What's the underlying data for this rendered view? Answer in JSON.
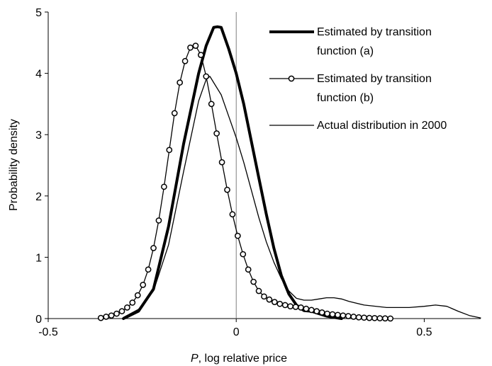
{
  "chart_data": {
    "type": "line",
    "xlabel_italic": "P",
    "xlabel_rest": ", log relative price",
    "ylabel": "Probability density",
    "xlim": [
      -0.5,
      0.65
    ],
    "ylim": [
      0,
      5
    ],
    "x_ticks": [
      {
        "value": -0.5,
        "label": "-0.5"
      },
      {
        "value": 0,
        "label": "0"
      },
      {
        "value": 0.5,
        "label": "0.5"
      }
    ],
    "y_ticks": [
      {
        "value": 0,
        "label": "0"
      },
      {
        "value": 1,
        "label": "1"
      },
      {
        "value": 2,
        "label": "2"
      },
      {
        "value": 3,
        "label": "3"
      },
      {
        "value": 4,
        "label": "4"
      },
      {
        "value": 5,
        "label": "5"
      }
    ],
    "vertical_reference_line_x": 0,
    "grid": false,
    "legend_position": "top-right",
    "legend": [
      {
        "line1": "Estimated by transition",
        "line2": "function (a)",
        "series_index": 0
      },
      {
        "line1": "Estimated by transition",
        "line2": "function (b)",
        "series_index": 1
      },
      {
        "line1": "Actual distribution in 2000",
        "line2": "",
        "series_index": 2
      }
    ],
    "series": [
      {
        "style": "thick",
        "color": "#000000",
        "x": [
          -0.3,
          -0.26,
          -0.22,
          -0.18,
          -0.14,
          -0.1,
          -0.08,
          -0.06,
          -0.05,
          -0.04,
          -0.02,
          0.0,
          0.02,
          0.04,
          0.06,
          0.08,
          0.1,
          0.12,
          0.14,
          0.16,
          0.18,
          0.2,
          0.22,
          0.24,
          0.26,
          0.28
        ],
        "y": [
          0.0,
          0.12,
          0.48,
          1.5,
          2.85,
          4.0,
          4.45,
          4.75,
          4.76,
          4.75,
          4.4,
          4.0,
          3.5,
          2.9,
          2.3,
          1.7,
          1.15,
          0.7,
          0.4,
          0.22,
          0.13,
          0.12,
          0.08,
          0.04,
          0.02,
          0.0
        ]
      },
      {
        "style": "markers",
        "color": "#000000",
        "x": [
          -0.36,
          -0.346,
          -0.332,
          -0.318,
          -0.304,
          -0.29,
          -0.276,
          -0.262,
          -0.248,
          -0.234,
          -0.22,
          -0.206,
          -0.192,
          -0.178,
          -0.164,
          -0.15,
          -0.136,
          -0.122,
          -0.108,
          -0.094,
          -0.08,
          -0.066,
          -0.052,
          -0.038,
          -0.024,
          -0.01,
          0.004,
          0.018,
          0.032,
          0.046,
          0.06,
          0.074,
          0.088,
          0.102,
          0.116,
          0.13,
          0.144,
          0.158,
          0.172,
          0.186,
          0.2,
          0.214,
          0.228,
          0.242,
          0.256,
          0.27,
          0.284,
          0.298,
          0.312,
          0.326,
          0.34,
          0.354,
          0.368,
          0.382,
          0.396,
          0.41
        ],
        "y": [
          0.01,
          0.03,
          0.05,
          0.08,
          0.12,
          0.18,
          0.26,
          0.38,
          0.55,
          0.8,
          1.15,
          1.6,
          2.15,
          2.75,
          3.35,
          3.85,
          4.2,
          4.42,
          4.45,
          4.3,
          3.95,
          3.5,
          3.02,
          2.55,
          2.1,
          1.7,
          1.35,
          1.05,
          0.8,
          0.6,
          0.45,
          0.36,
          0.31,
          0.27,
          0.24,
          0.22,
          0.2,
          0.19,
          0.18,
          0.16,
          0.14,
          0.12,
          0.1,
          0.08,
          0.07,
          0.06,
          0.05,
          0.04,
          0.03,
          0.02,
          0.015,
          0.01,
          0.008,
          0.005,
          0.003,
          0.001
        ]
      },
      {
        "style": "thin",
        "color": "#000000",
        "x": [
          -0.3,
          -0.26,
          -0.22,
          -0.18,
          -0.14,
          -0.1,
          -0.08,
          -0.07,
          -0.06,
          -0.04,
          -0.02,
          0.0,
          0.02,
          0.04,
          0.06,
          0.08,
          0.1,
          0.12,
          0.14,
          0.16,
          0.18,
          0.2,
          0.22,
          0.24,
          0.26,
          0.28,
          0.3,
          0.34,
          0.4,
          0.46,
          0.5,
          0.53,
          0.56,
          0.59,
          0.62,
          0.65
        ],
        "y": [
          0.02,
          0.15,
          0.45,
          1.2,
          2.4,
          3.55,
          3.9,
          3.95,
          3.85,
          3.65,
          3.3,
          2.95,
          2.55,
          2.1,
          1.65,
          1.25,
          0.92,
          0.65,
          0.45,
          0.33,
          0.3,
          0.3,
          0.32,
          0.34,
          0.34,
          0.32,
          0.28,
          0.22,
          0.18,
          0.18,
          0.2,
          0.22,
          0.2,
          0.12,
          0.05,
          0.01
        ]
      }
    ]
  }
}
